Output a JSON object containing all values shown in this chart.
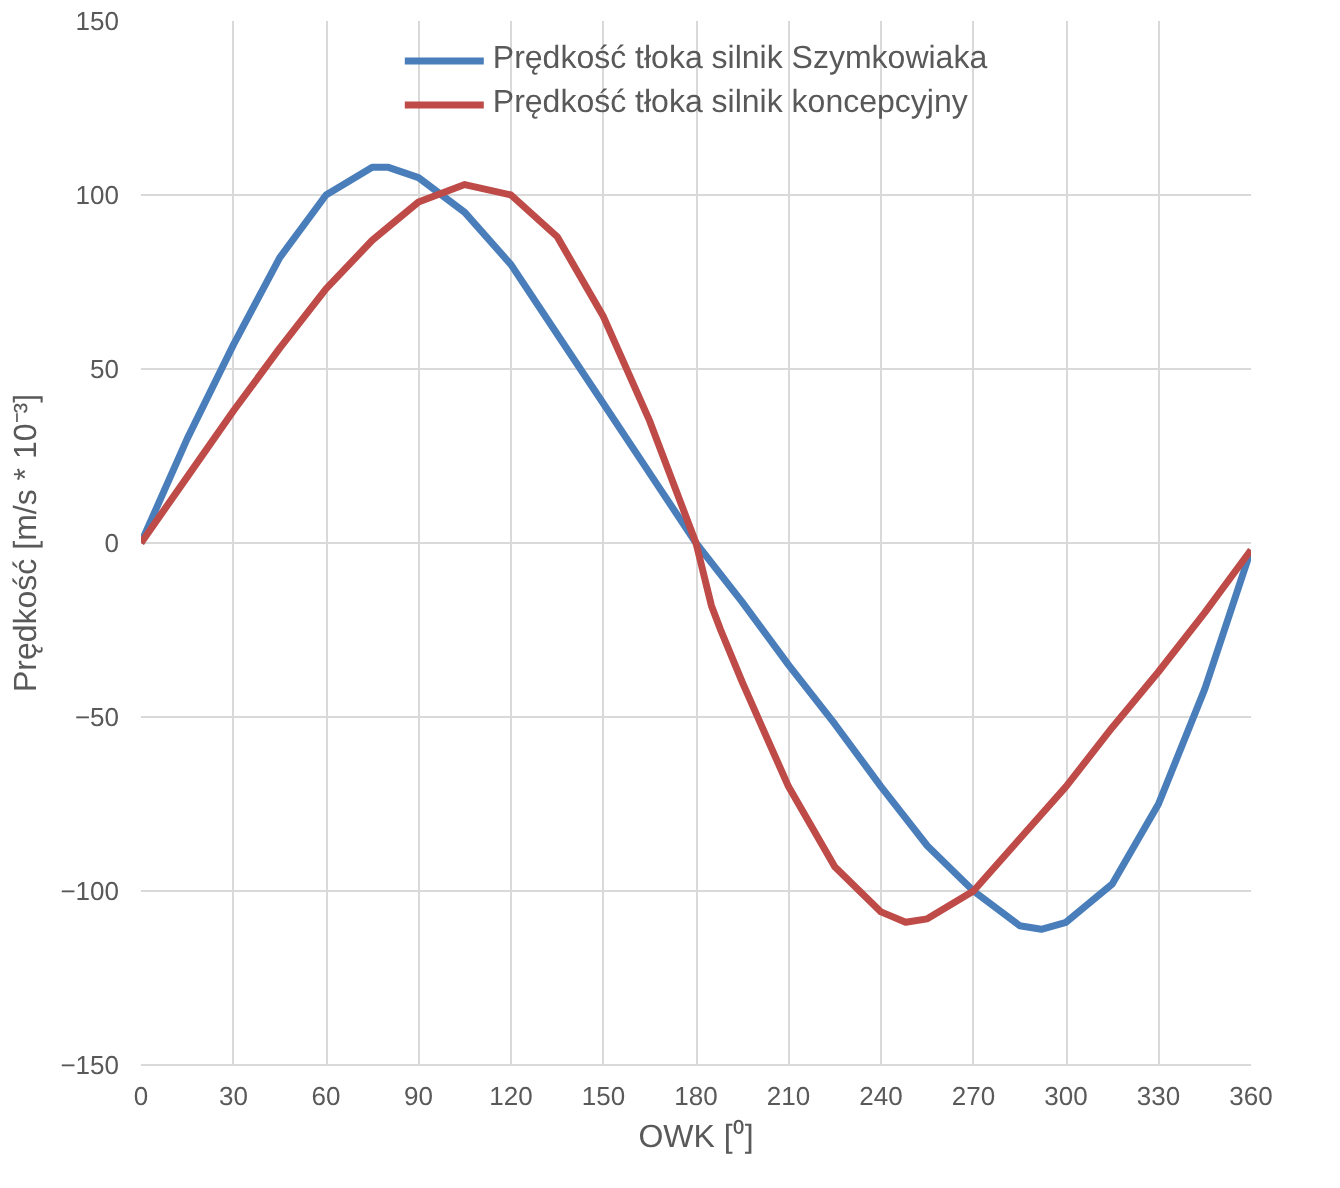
{
  "chart_data": {
    "type": "line",
    "xlabel": "OWK [⁰]",
    "ylabel": "Prędkość [m/s * 10⁻³]",
    "xlim": [
      0,
      360
    ],
    "xticks": [
      0,
      30,
      60,
      90,
      120,
      150,
      180,
      210,
      240,
      270,
      300,
      330,
      360
    ],
    "ylim": [
      -150,
      150
    ],
    "yticks": [
      -150,
      -100,
      -50,
      0,
      50,
      100,
      150
    ],
    "grid": true,
    "legend": "top",
    "marker": "none",
    "line_style": "solid",
    "series": [
      {
        "name": "Prędkość tłoka silnik Szymkowiaka",
        "color": "#4a7ebb",
        "x": [
          0,
          15,
          30,
          45,
          60,
          75,
          80,
          90,
          105,
          120,
          135,
          150,
          165,
          180,
          195,
          210,
          225,
          240,
          255,
          270,
          285,
          292,
          300,
          315,
          330,
          345,
          360
        ],
        "values": [
          0,
          30,
          57,
          82,
          100,
          108,
          108,
          105,
          95,
          80,
          60,
          40,
          20,
          0,
          -17,
          -35,
          -52,
          -70,
          -87,
          -100,
          -110,
          -111,
          -109,
          -98,
          -75,
          -42,
          -2
        ]
      },
      {
        "name": "Prędkość tłoka silnik koncepcyjny",
        "color": "#be4b48",
        "x": [
          0,
          15,
          30,
          45,
          60,
          75,
          90,
          105,
          120,
          135,
          150,
          165,
          180,
          185,
          188,
          195,
          210,
          225,
          240,
          248,
          255,
          270,
          285,
          300,
          315,
          330,
          345,
          360
        ],
        "values": [
          0,
          19,
          38,
          56,
          73,
          87,
          98,
          103,
          100,
          88,
          65,
          35,
          0,
          -18,
          -25,
          -40,
          -70,
          -93,
          -106,
          -109,
          -108,
          -100,
          -85,
          -70,
          -53,
          -37,
          -20,
          -2
        ]
      }
    ]
  }
}
